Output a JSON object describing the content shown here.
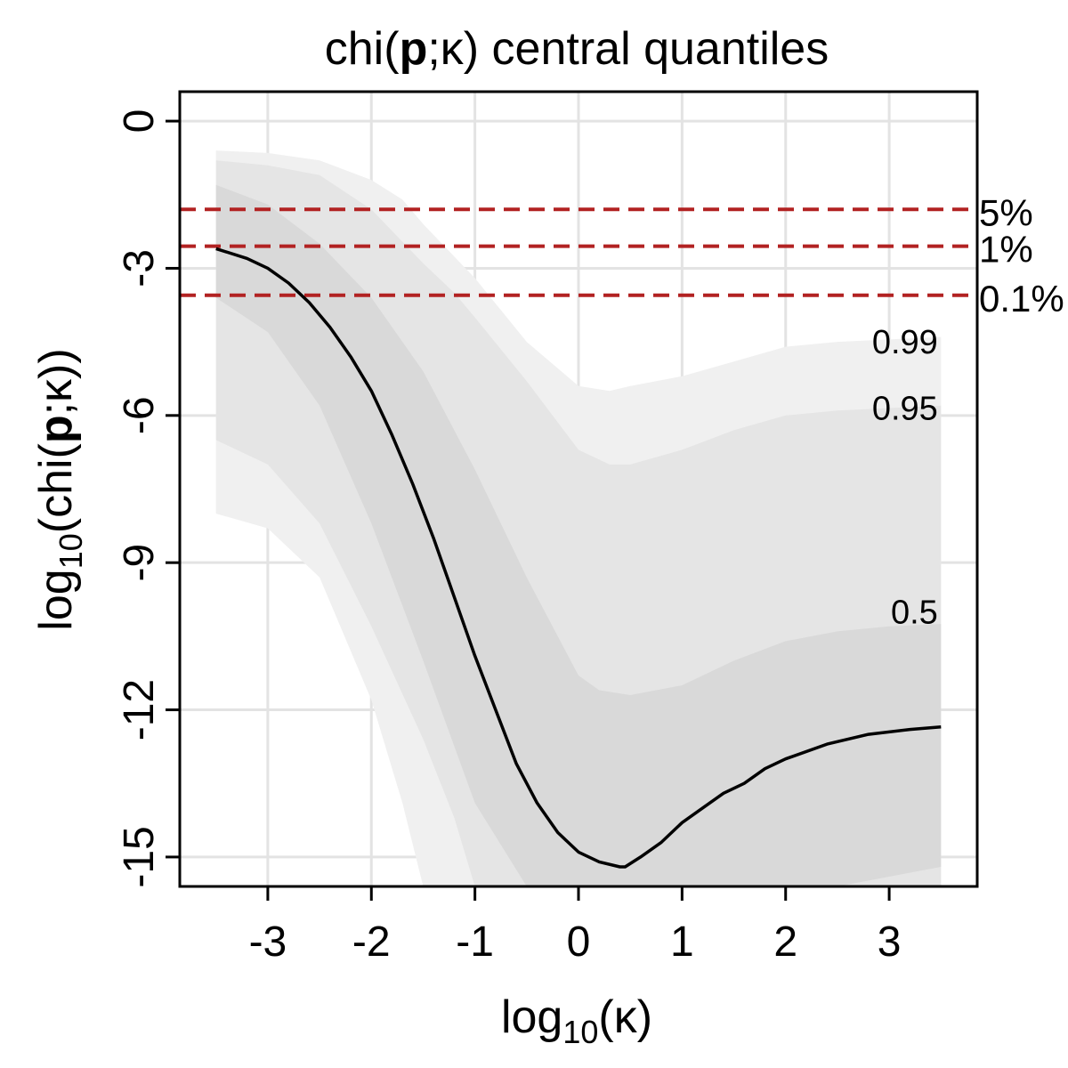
{
  "chart_data": {
    "type": "area",
    "title": {
      "prefix": "chi(",
      "bold": "p",
      "suffix": ";κ) central quantiles"
    },
    "xlabel": {
      "base": "log",
      "sub": "10",
      "rest": "(κ)"
    },
    "ylabel": {
      "base": "log",
      "sub": "10",
      "pre": "(chi(",
      "bold": "p",
      "post": ";κ))"
    },
    "xlim": [
      -3.85,
      3.85
    ],
    "ylim": [
      -15.6,
      0.6
    ],
    "x_ticks": [
      -3,
      -2,
      -1,
      0,
      1,
      2,
      3
    ],
    "x_tick_labels": [
      "-3",
      "-2",
      "-1",
      "0",
      "1",
      "2",
      "3"
    ],
    "y_ticks": [
      0,
      -3,
      -6,
      -9,
      -12,
      -15
    ],
    "y_tick_labels": [
      "0",
      "-3",
      "-6",
      "-9",
      "-12",
      "-15"
    ],
    "grid": true,
    "colors": {
      "band_99": "#f0f0f0",
      "band_95": "#e5e5e5",
      "band_50": "#d9d9d9",
      "median": "#000000",
      "threshold": "#b22222",
      "grid": "#e3e3e3"
    },
    "bands": [
      {
        "name": "0.99",
        "x": [
          -3.5,
          -3.0,
          -2.5,
          -2.0,
          -1.7,
          -1.5,
          -1.0,
          -0.5,
          0.0,
          0.3,
          0.5,
          1.0,
          1.5,
          2.0,
          2.5,
          3.0,
          3.5
        ],
        "upper": [
          -0.6,
          -0.65,
          -0.8,
          -1.2,
          -1.6,
          -2.1,
          -3.2,
          -4.5,
          -5.4,
          -5.5,
          -5.4,
          -5.2,
          -4.9,
          -4.6,
          -4.5,
          -4.45,
          -4.4
        ],
        "lower": [
          -8.0,
          -8.3,
          -9.3,
          -11.8,
          -13.9,
          -15.6,
          -15.6,
          -15.6,
          -15.6,
          -15.6,
          -15.6,
          -15.6,
          -15.6,
          -15.6,
          -15.6,
          -15.6,
          -15.6
        ]
      },
      {
        "name": "0.95",
        "x": [
          -3.5,
          -3.0,
          -2.5,
          -2.0,
          -1.5,
          -1.2,
          -1.0,
          -0.5,
          0.0,
          0.3,
          0.5,
          1.0,
          1.5,
          2.0,
          2.5,
          3.0,
          3.5
        ],
        "upper": [
          -0.8,
          -0.9,
          -1.1,
          -1.8,
          -2.9,
          -3.5,
          -4.0,
          -5.3,
          -6.7,
          -7.0,
          -7.0,
          -6.7,
          -6.3,
          -6.0,
          -5.9,
          -5.85,
          -5.8
        ],
        "lower": [
          -6.5,
          -7.0,
          -8.2,
          -10.3,
          -12.6,
          -14.2,
          -15.6,
          -15.6,
          -15.6,
          -15.6,
          -15.6,
          -15.6,
          -15.6,
          -15.6,
          -15.6,
          -15.6,
          -15.6
        ]
      },
      {
        "name": "0.5",
        "x": [
          -3.5,
          -3.0,
          -2.5,
          -2.0,
          -1.5,
          -1.0,
          -0.5,
          0.0,
          0.2,
          0.5,
          1.0,
          1.5,
          2.0,
          2.5,
          3.0,
          3.5
        ],
        "upper": [
          -1.3,
          -1.7,
          -2.5,
          -3.6,
          -5.1,
          -7.1,
          -9.3,
          -11.3,
          -11.6,
          -11.7,
          -11.5,
          -11.0,
          -10.6,
          -10.4,
          -10.3,
          -10.25
        ],
        "lower": [
          -3.6,
          -4.3,
          -5.8,
          -8.2,
          -11.0,
          -13.9,
          -15.6,
          -15.6,
          -15.6,
          -15.6,
          -15.6,
          -15.6,
          -15.6,
          -15.6,
          -15.4,
          -15.2
        ]
      }
    ],
    "median": {
      "x": [
        -3.5,
        -3.2,
        -3.0,
        -2.8,
        -2.6,
        -2.4,
        -2.2,
        -2.0,
        -1.8,
        -1.6,
        -1.4,
        -1.2,
        -1.0,
        -0.8,
        -0.6,
        -0.4,
        -0.2,
        0.0,
        0.2,
        0.4,
        0.45,
        0.6,
        0.8,
        1.0,
        1.2,
        1.4,
        1.6,
        1.8,
        2.0,
        2.4,
        2.8,
        3.2,
        3.5
      ],
      "y": [
        -2.6,
        -2.8,
        -3.0,
        -3.3,
        -3.7,
        -4.2,
        -4.8,
        -5.5,
        -6.4,
        -7.4,
        -8.5,
        -9.7,
        -10.9,
        -12.0,
        -13.1,
        -13.9,
        -14.5,
        -14.9,
        -15.1,
        -15.2,
        -15.2,
        -15.0,
        -14.7,
        -14.3,
        -14.0,
        -13.7,
        -13.5,
        -13.2,
        -13.0,
        -12.7,
        -12.5,
        -12.4,
        -12.35
      ]
    },
    "thresholds": [
      {
        "label": "5%",
        "y": -1.8
      },
      {
        "label": "1%",
        "y": -2.55
      },
      {
        "label": "0.1%",
        "y": -3.55
      }
    ],
    "band_labels": [
      {
        "label": "0.99",
        "x": 3.47,
        "y": -4.5
      },
      {
        "label": "0.95",
        "x": 3.47,
        "y": -5.85
      },
      {
        "label": "0.5",
        "x": 3.47,
        "y": -10.0
      }
    ]
  }
}
